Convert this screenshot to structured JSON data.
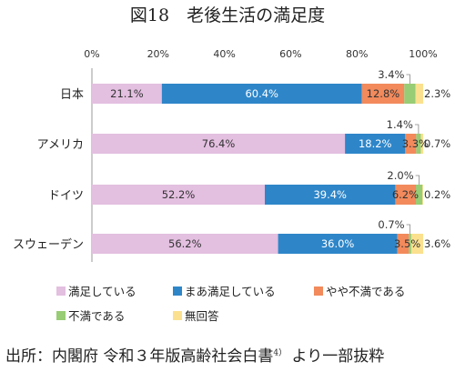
{
  "chart_data": {
    "type": "bar",
    "stacked": "100%",
    "orientation": "horizontal",
    "title": "図18　老後生活の満足度",
    "categories": [
      "日本",
      "アメリカ",
      "ドイツ",
      "スウェーデン"
    ],
    "series": [
      {
        "name": "満足している",
        "color": "#e3bfe0",
        "values": [
          21.1,
          76.4,
          52.2,
          56.2
        ]
      },
      {
        "name": "まあ満足している",
        "color": "#2e86c9",
        "values": [
          60.4,
          18.2,
          39.4,
          36.0
        ]
      },
      {
        "name": "やや不満である",
        "color": "#f28a5c",
        "values": [
          12.8,
          3.3,
          6.2,
          3.5
        ]
      },
      {
        "name": "不満である",
        "color": "#98cc75",
        "values": [
          3.4,
          1.4,
          2.0,
          0.7
        ]
      },
      {
        "name": "無回答",
        "color": "#fbe08f",
        "values": [
          2.3,
          0.7,
          0.2,
          3.6
        ]
      }
    ],
    "value_labels": [
      [
        "21.1%",
        "60.4%",
        "12.8%",
        "3.4%",
        "2.3%"
      ],
      [
        "76.4%",
        "18.2%",
        "3.3%",
        "1.4%",
        "0.7%"
      ],
      [
        "52.2%",
        "39.4%",
        "6.2%",
        "2.0%",
        "0.2%"
      ],
      [
        "56.2%",
        "36.0%",
        "3.5%",
        "0.7%",
        "3.6%"
      ]
    ],
    "xlim": [
      0,
      100
    ],
    "xticks": [
      "0%",
      "20%",
      "40%",
      "60%",
      "80%",
      "100%"
    ],
    "legend_position": "bottom",
    "grid": false
  },
  "source": {
    "text": "出所：内閣府 令和３年版高齢社会白書",
    "footnote": "4）",
    "suffix": " より一部抜粋"
  }
}
